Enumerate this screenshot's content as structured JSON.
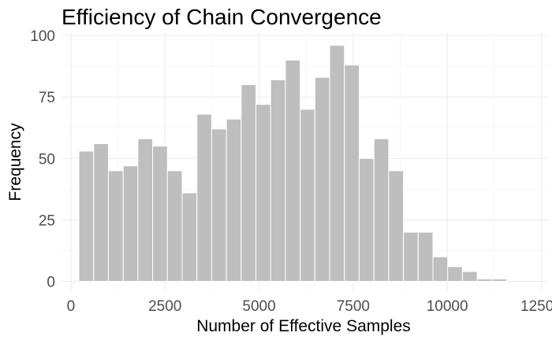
{
  "chart_data": {
    "type": "bar",
    "subtype": "histogram",
    "title": "Efficiency of Chain Convergence",
    "xlabel": "Number of Effective Samples",
    "ylabel": "Frequency",
    "x_bin_centers": [
      408,
      800,
      1192,
      1584,
      1976,
      2368,
      2760,
      3152,
      3544,
      3936,
      4328,
      4720,
      5112,
      5504,
      5896,
      6288,
      6680,
      7072,
      7464,
      7856,
      8248,
      8640,
      9032,
      9424,
      9816,
      10208,
      10600,
      10992,
      11384,
      11776,
      12168
    ],
    "bin_width": 392,
    "values": [
      53,
      56,
      45,
      47,
      58,
      55,
      45,
      36,
      68,
      62,
      66,
      80,
      72,
      82,
      90,
      70,
      83,
      96,
      88,
      50,
      58,
      45,
      20,
      20,
      10,
      6,
      4,
      1,
      1,
      0,
      0
    ],
    "xlim": [
      -250,
      12700
    ],
    "ylim": [
      -4,
      101
    ],
    "x_ticks": [
      0,
      2500,
      5000,
      7500,
      10000,
      12500
    ],
    "x_tick_labels": [
      "0",
      "2500",
      "5000",
      "7500",
      "10000",
      "12500"
    ],
    "y_ticks": [
      0,
      25,
      50,
      75,
      100
    ],
    "y_tick_labels": [
      "0",
      "25",
      "50",
      "75",
      "100"
    ],
    "grid": true,
    "legend": "none",
    "colors": {
      "bar_fill": "#bebebe",
      "bar_stroke": "#ffffff",
      "grid_major": "#ebebeb",
      "grid_minor": "#f4f4f4",
      "background": "#ffffff"
    }
  }
}
